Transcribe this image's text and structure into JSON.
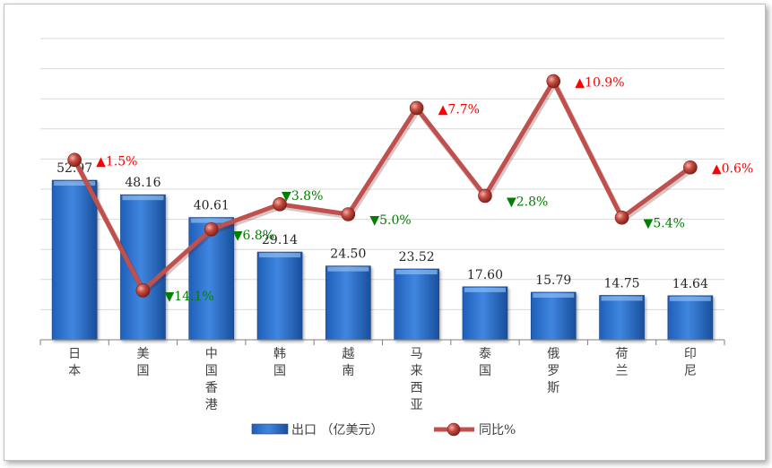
{
  "chart_data": {
    "type": "bar",
    "categories": [
      "日本",
      "美国",
      "中国香港",
      "韩国",
      "越南",
      "马来西亚",
      "泰国",
      "俄罗斯",
      "荷兰",
      "印尼"
    ],
    "series": [
      {
        "name": "出口 （亿美元）",
        "type": "bar",
        "axis": "left",
        "values": [
          52.97,
          48.16,
          40.61,
          29.14,
          24.5,
          23.52,
          17.6,
          15.79,
          14.75,
          14.64
        ],
        "labels": [
          "52.97",
          "48.16",
          "40.61",
          "29.14",
          "24.50",
          "23.52",
          "17.60",
          "15.79",
          "14.75",
          "14.64"
        ],
        "color": "#2e75d6"
      },
      {
        "name": "同比%",
        "type": "line",
        "axis": "right",
        "values": [
          1.5,
          -14.1,
          -6.8,
          -3.8,
          -5.0,
          7.7,
          -2.8,
          10.9,
          -5.4,
          0.6
        ],
        "labels": [
          "1.5%",
          "14.1%",
          "6.8%",
          "3.8%",
          "5.0%",
          "7.7%",
          "2.8%",
          "10.9%",
          "5.4%",
          "0.6%"
        ],
        "direction": [
          "up",
          "down",
          "down",
          "down",
          "down",
          "up",
          "down",
          "up",
          "down",
          "up"
        ],
        "color": "#c0504d"
      }
    ],
    "ylim_left": [
      0,
      100
    ],
    "ylim_right": [
      -20,
      16
    ],
    "grid": true,
    "legend": "bottom",
    "up_color": "#ff0000",
    "down_color": "#008000"
  }
}
